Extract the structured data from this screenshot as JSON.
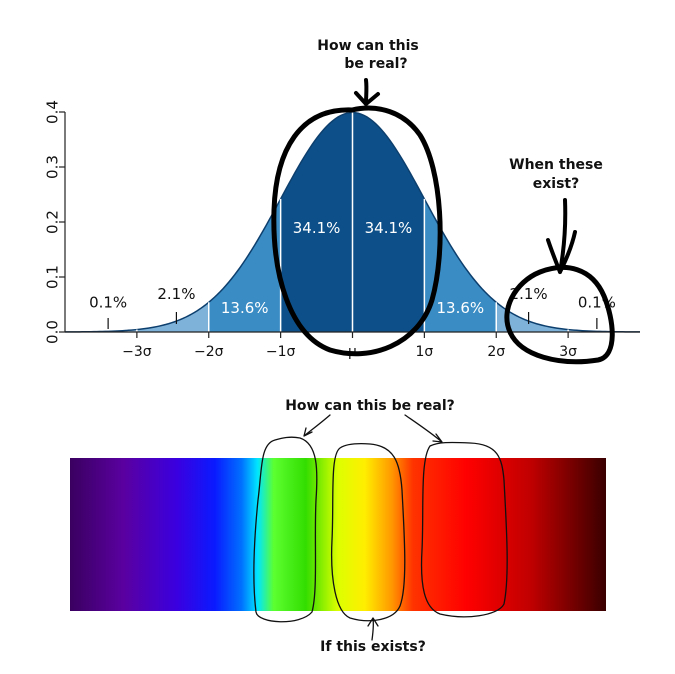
{
  "annotations": {
    "top_question": [
      "How can this",
      "be real?"
    ],
    "side_question": [
      "When these",
      "exist?"
    ],
    "spectrum_question": "How can this be real?",
    "spectrum_bottom_question": "If this exists?"
  },
  "chart_data": [
    {
      "type": "area",
      "title": "",
      "xlabel": "",
      "ylabel": "",
      "x_tick_labels": [
        "−3σ",
        "−2σ",
        "−1σ",
        "μ",
        "1σ",
        "2σ",
        "3σ"
      ],
      "x_ticks": [
        -3,
        -2,
        -1,
        0,
        1,
        2,
        3
      ],
      "y_ticks": [
        0.0,
        0.1,
        0.2,
        0.3,
        0.4
      ],
      "y_tick_labels": [
        "0.0",
        "0.1",
        "0.2",
        "0.3",
        "0.4"
      ],
      "xlim": [
        -4,
        4
      ],
      "ylim": [
        0,
        0.4
      ],
      "curve": "normal pdf, mean 0, sd 1",
      "region_labels": [
        {
          "label": "0.1%",
          "from": -4,
          "to": -3
        },
        {
          "label": "2.1%",
          "from": -3,
          "to": -2
        },
        {
          "label": "13.6%",
          "from": -2,
          "to": -1
        },
        {
          "label": "34.1%",
          "from": -1,
          "to": 0
        },
        {
          "label": "34.1%",
          "from": 0,
          "to": 1
        },
        {
          "label": "13.6%",
          "from": 1,
          "to": 2
        },
        {
          "label": "2.1%",
          "from": 2,
          "to": 3
        },
        {
          "label": "0.1%",
          "from": 3,
          "to": 4
        }
      ],
      "colors": {
        "inner": "#0d5089",
        "middle": "#3a8cc4",
        "outer": "#7fb2d8",
        "tail": "#aac9e4"
      }
    },
    {
      "type": "heatmap",
      "description_colors": [
        "#3b0060",
        "#6a00b0",
        "#1a1aff",
        "#00e0ff",
        "#22dd00",
        "#ffff00",
        "#ff7700",
        "#ff0000",
        "#bb0000",
        "#3a0000"
      ]
    }
  ]
}
